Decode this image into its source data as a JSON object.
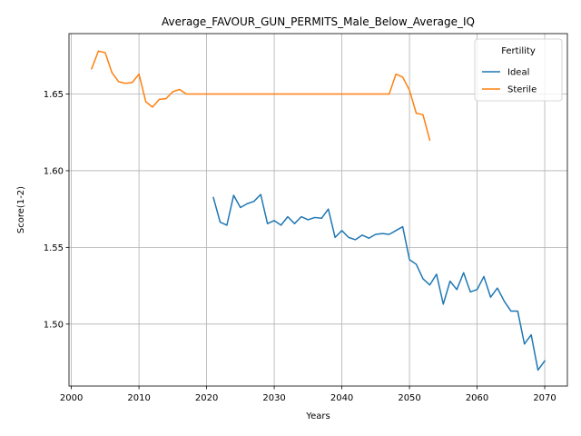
{
  "chart_data": {
    "type": "line",
    "title": "Average_FAVOUR_GUN_PERMITS_Male_Below_Average_IQ",
    "xlabel": "Years",
    "ylabel": "Score(1-2)",
    "xlim": [
      1999.65,
      2073.35
    ],
    "ylim": [
      1.4596,
      1.6894
    ],
    "xticks": [
      2000,
      2010,
      2020,
      2030,
      2040,
      2050,
      2060,
      2070
    ],
    "yticks": [
      1.5,
      1.55,
      1.6,
      1.65
    ],
    "xtick_labels": [
      "2000",
      "2010",
      "2020",
      "2030",
      "2040",
      "2050",
      "2060",
      "2070"
    ],
    "ytick_labels": [
      "1.50",
      "1.55",
      "1.60",
      "1.65"
    ],
    "grid": true,
    "legend": {
      "title": "Fertility",
      "position": "top-right"
    },
    "series": [
      {
        "name": "Ideal",
        "color": "#1f77b4",
        "x": [
          2021,
          2022,
          2023,
          2024,
          2025,
          2026,
          2027,
          2028,
          2029,
          2030,
          2031,
          2032,
          2033,
          2034,
          2035,
          2036,
          2037,
          2038,
          2039,
          2040,
          2041,
          2042,
          2043,
          2044,
          2045,
          2046,
          2047,
          2048,
          2049,
          2050,
          2051,
          2052,
          2053,
          2054,
          2055,
          2056,
          2057,
          2058,
          2059,
          2060,
          2061,
          2062,
          2063,
          2064,
          2065,
          2066,
          2067,
          2068,
          2069,
          2070
        ],
        "y": [
          1.5825,
          1.5665,
          1.5645,
          1.584,
          1.576,
          1.5785,
          1.58,
          1.5845,
          1.5655,
          1.5675,
          1.5645,
          1.57,
          1.5655,
          1.57,
          1.568,
          1.5695,
          1.569,
          1.575,
          1.5565,
          1.561,
          1.5565,
          1.555,
          1.558,
          1.556,
          1.5585,
          1.559,
          1.5585,
          1.561,
          1.5635,
          1.542,
          1.539,
          1.5295,
          1.5255,
          1.5325,
          1.513,
          1.528,
          1.5225,
          1.5335,
          1.521,
          1.5225,
          1.531,
          1.5175,
          1.5235,
          1.515,
          1.5085,
          1.5085,
          1.487,
          1.493,
          1.47,
          1.476
        ]
      },
      {
        "name": "Sterile",
        "color": "#ff7f0e",
        "x": [
          2003,
          2004,
          2005,
          2006,
          2007,
          2008,
          2009,
          2010,
          2011,
          2012,
          2013,
          2014,
          2015,
          2016,
          2017,
          2018,
          2019,
          2020,
          2021,
          2022,
          2023,
          2024,
          2025,
          2026,
          2027,
          2028,
          2029,
          2030,
          2031,
          2032,
          2033,
          2034,
          2035,
          2036,
          2037,
          2038,
          2039,
          2040,
          2041,
          2042,
          2043,
          2044,
          2045,
          2046,
          2047,
          2048,
          2049,
          2050,
          2051,
          2052,
          2053
        ],
        "y": [
          1.6665,
          1.678,
          1.677,
          1.664,
          1.658,
          1.657,
          1.6575,
          1.663,
          1.645,
          1.6415,
          1.6465,
          1.647,
          1.6515,
          1.653,
          1.65,
          1.65,
          1.65,
          1.65,
          1.65,
          1.65,
          1.65,
          1.65,
          1.65,
          1.65,
          1.65,
          1.65,
          1.65,
          1.65,
          1.65,
          1.65,
          1.65,
          1.65,
          1.65,
          1.65,
          1.65,
          1.65,
          1.65,
          1.65,
          1.65,
          1.65,
          1.65,
          1.65,
          1.65,
          1.65,
          1.65,
          1.663,
          1.661,
          1.6525,
          1.6375,
          1.6365,
          1.62
        ]
      }
    ]
  }
}
